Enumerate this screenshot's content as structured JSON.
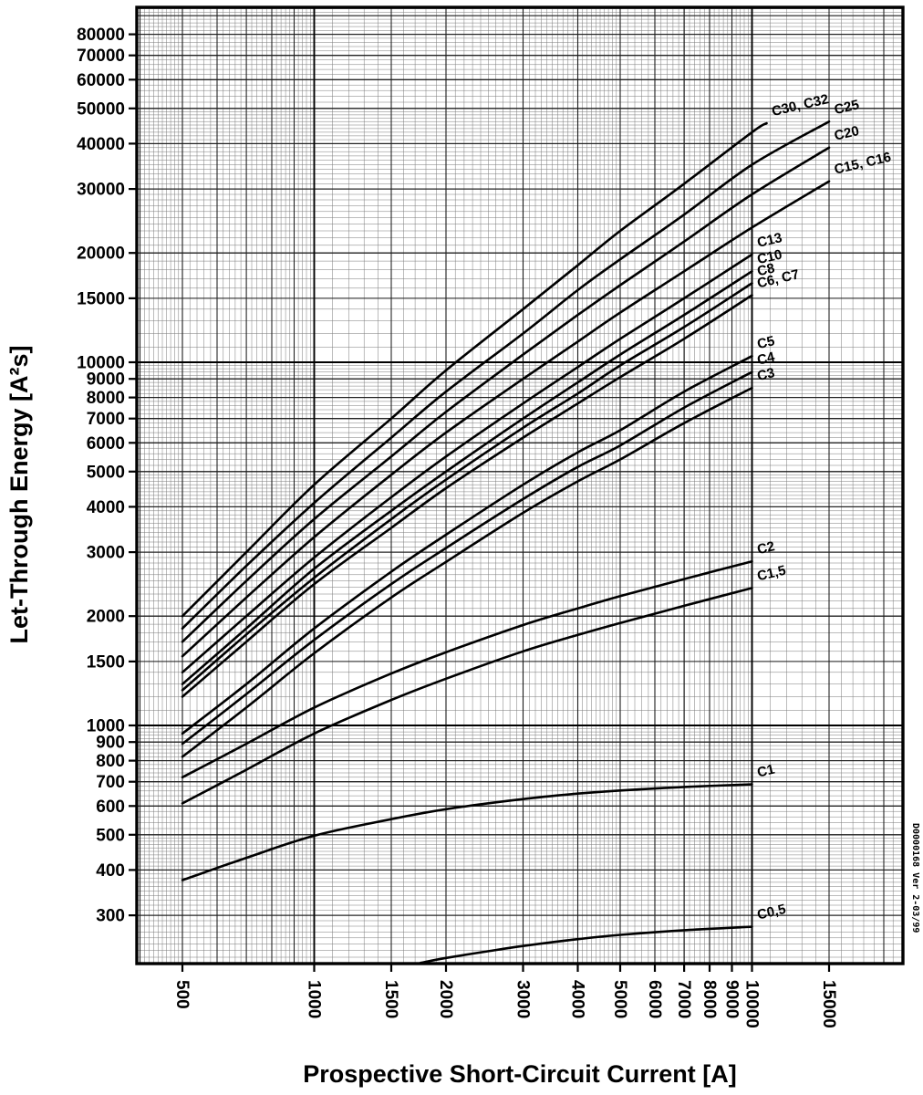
{
  "stamp": "D0000168 Ver 2-03/99",
  "chart_data": {
    "type": "line",
    "title": "",
    "xlabel": "Prospective Short-Circuit Current [A]",
    "ylabel": "Let-Through Energy [A²s]",
    "x_scale": "log",
    "y_scale": "log",
    "xlim": [
      393,
      22000
    ],
    "ylim": [
      221,
      95000
    ],
    "grid": "log-log fine engineering grid, on",
    "legend_position": "labels at curve ends",
    "x_ticks": [
      500,
      1000,
      1500,
      2000,
      3000,
      4000,
      5000,
      6000,
      7000,
      8000,
      9000,
      10000,
      15000
    ],
    "y_ticks": [
      300,
      400,
      500,
      600,
      700,
      800,
      900,
      1000,
      1500,
      2000,
      3000,
      4000,
      5000,
      6000,
      7000,
      8000,
      9000,
      10000,
      15000,
      20000,
      30000,
      40000,
      50000,
      60000,
      70000,
      80000
    ],
    "series": [
      {
        "name": "C30, C32",
        "points": [
          [
            500,
            2000
          ],
          [
            700,
            3000
          ],
          [
            1000,
            4600
          ],
          [
            1500,
            7000
          ],
          [
            2000,
            9500
          ],
          [
            3000,
            14000
          ],
          [
            4000,
            18500
          ],
          [
            5000,
            23000
          ],
          [
            7000,
            31000
          ],
          [
            10000,
            43000
          ],
          [
            10800,
            45500
          ]
        ]
      },
      {
        "name": "C25",
        "points": [
          [
            500,
            1850
          ],
          [
            700,
            2750
          ],
          [
            1000,
            4100
          ],
          [
            1500,
            6200
          ],
          [
            2000,
            8300
          ],
          [
            3000,
            12000
          ],
          [
            4000,
            15800
          ],
          [
            5000,
            19200
          ],
          [
            7000,
            25500
          ],
          [
            10000,
            35000
          ],
          [
            15000,
            46000
          ]
        ]
      },
      {
        "name": "C20",
        "points": [
          [
            500,
            1700
          ],
          [
            700,
            2500
          ],
          [
            1000,
            3700
          ],
          [
            1500,
            5500
          ],
          [
            2000,
            7300
          ],
          [
            3000,
            10500
          ],
          [
            4000,
            13500
          ],
          [
            5000,
            16300
          ],
          [
            7000,
            21500
          ],
          [
            10000,
            29000
          ],
          [
            15000,
            39000
          ]
        ]
      },
      {
        "name": "C15, C16",
        "points": [
          [
            500,
            1550
          ],
          [
            700,
            2250
          ],
          [
            1000,
            3300
          ],
          [
            1500,
            4900
          ],
          [
            2000,
            6400
          ],
          [
            3000,
            9000
          ],
          [
            4000,
            11400
          ],
          [
            5000,
            13700
          ],
          [
            7000,
            17800
          ],
          [
            10000,
            23500
          ],
          [
            15000,
            31500
          ]
        ]
      },
      {
        "name": "C13",
        "points": [
          [
            500,
            1400
          ],
          [
            700,
            2000
          ],
          [
            1000,
            2900
          ],
          [
            1500,
            4250
          ],
          [
            2000,
            5500
          ],
          [
            3000,
            7700
          ],
          [
            4000,
            9700
          ],
          [
            5000,
            11600
          ],
          [
            7000,
            15000
          ],
          [
            10000,
            19800
          ]
        ]
      },
      {
        "name": "C10",
        "points": [
          [
            500,
            1300
          ],
          [
            700,
            1850
          ],
          [
            1000,
            2700
          ],
          [
            1500,
            3900
          ],
          [
            2000,
            5000
          ],
          [
            3000,
            7000
          ],
          [
            4000,
            8800
          ],
          [
            5000,
            10500
          ],
          [
            7000,
            13500
          ],
          [
            10000,
            17800
          ]
        ]
      },
      {
        "name": "C8",
        "points": [
          [
            500,
            1250
          ],
          [
            700,
            1780
          ],
          [
            1000,
            2550
          ],
          [
            1500,
            3700
          ],
          [
            2000,
            4750
          ],
          [
            3000,
            6600
          ],
          [
            4000,
            8200
          ],
          [
            5000,
            9800
          ],
          [
            7000,
            12500
          ],
          [
            10000,
            16500
          ]
        ]
      },
      {
        "name": "C6, C7",
        "points": [
          [
            500,
            1200
          ],
          [
            700,
            1700
          ],
          [
            1000,
            2450
          ],
          [
            1500,
            3500
          ],
          [
            2000,
            4500
          ],
          [
            3000,
            6200
          ],
          [
            4000,
            7700
          ],
          [
            5000,
            9100
          ],
          [
            7000,
            11600
          ],
          [
            10000,
            15300
          ]
        ]
      },
      {
        "name": "C5",
        "points": [
          [
            500,
            950
          ],
          [
            700,
            1300
          ],
          [
            1000,
            1850
          ],
          [
            1500,
            2650
          ],
          [
            2000,
            3350
          ],
          [
            3000,
            4600
          ],
          [
            4000,
            5650
          ],
          [
            5000,
            6500
          ],
          [
            7000,
            8300
          ],
          [
            10000,
            10400
          ]
        ]
      },
      {
        "name": "C4",
        "points": [
          [
            500,
            890
          ],
          [
            700,
            1220
          ],
          [
            1000,
            1720
          ],
          [
            1500,
            2450
          ],
          [
            2000,
            3080
          ],
          [
            3000,
            4200
          ],
          [
            4000,
            5150
          ],
          [
            5000,
            5900
          ],
          [
            7000,
            7500
          ],
          [
            10000,
            9400
          ]
        ]
      },
      {
        "name": "C3",
        "points": [
          [
            500,
            820
          ],
          [
            700,
            1120
          ],
          [
            1000,
            1580
          ],
          [
            1500,
            2250
          ],
          [
            2000,
            2820
          ],
          [
            3000,
            3850
          ],
          [
            4000,
            4700
          ],
          [
            5000,
            5400
          ],
          [
            7000,
            6800
          ],
          [
            10000,
            8500
          ]
        ]
      },
      {
        "name": "C2",
        "points": [
          [
            500,
            720
          ],
          [
            700,
            890
          ],
          [
            1000,
            1120
          ],
          [
            1500,
            1390
          ],
          [
            2000,
            1590
          ],
          [
            3000,
            1890
          ],
          [
            4000,
            2100
          ],
          [
            5000,
            2270
          ],
          [
            7000,
            2530
          ],
          [
            10000,
            2830
          ]
        ]
      },
      {
        "name": "C1,5",
        "points": [
          [
            500,
            610
          ],
          [
            700,
            755
          ],
          [
            1000,
            950
          ],
          [
            1500,
            1175
          ],
          [
            2000,
            1345
          ],
          [
            3000,
            1600
          ],
          [
            4000,
            1775
          ],
          [
            5000,
            1915
          ],
          [
            7000,
            2135
          ],
          [
            10000,
            2390
          ]
        ]
      },
      {
        "name": "C1",
        "points": [
          [
            500,
            375
          ],
          [
            700,
            432
          ],
          [
            1000,
            497
          ],
          [
            1500,
            552
          ],
          [
            2000,
            588
          ],
          [
            3000,
            627
          ],
          [
            4000,
            649
          ],
          [
            5000,
            662
          ],
          [
            7000,
            677
          ],
          [
            10000,
            688
          ]
        ]
      },
      {
        "name": "C0,5",
        "points": [
          [
            1750,
            222
          ],
          [
            2000,
            229
          ],
          [
            2500,
            239
          ],
          [
            3000,
            247
          ],
          [
            4000,
            258
          ],
          [
            5000,
            265
          ],
          [
            7000,
            273
          ],
          [
            10000,
            279
          ]
        ]
      }
    ]
  }
}
